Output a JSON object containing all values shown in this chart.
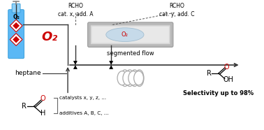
{
  "bg_color": "#ffffff",
  "rcho_text1": "RCHO\ncat. x, add. A",
  "rcho_text2": "RCHO\ncat. y, add. C",
  "o2_label": "O₂",
  "segmented_flow_label": "segmented flow",
  "heptane_label": "heptane",
  "catalysts_label": "catalysts x, y, z, ...",
  "additives_label": "additives A, B, C, ...",
  "selectivity_label": "Selectivity up to 98%",
  "cyl_blue": "#5bb8f5",
  "cyl_blue_dark": "#3a9fda",
  "cyl_blue_light": "#8fd0f8",
  "o2_red": "#cc0000",
  "line_color": "#333333",
  "gray_line": "#777777",
  "tube_bg": "#c8c8c8",
  "tube_inner": "#e0e0e0",
  "bubble_fill": "#b8d4e8",
  "coil_color": "#aaaaaa"
}
